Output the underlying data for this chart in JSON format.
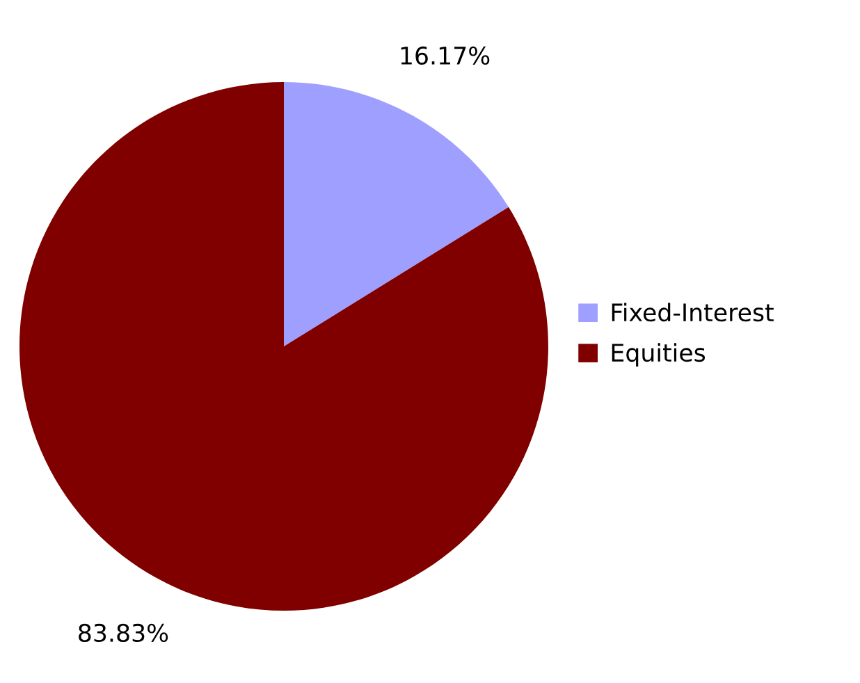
{
  "chart_data": {
    "type": "pie",
    "categories": [
      "Fixed-Interest",
      "Equities"
    ],
    "values": [
      16.17,
      83.83
    ],
    "colors": [
      "#9f9fff",
      "#800000"
    ],
    "value_labels": [
      "16.17%",
      "83.83%"
    ],
    "legend": "right"
  }
}
